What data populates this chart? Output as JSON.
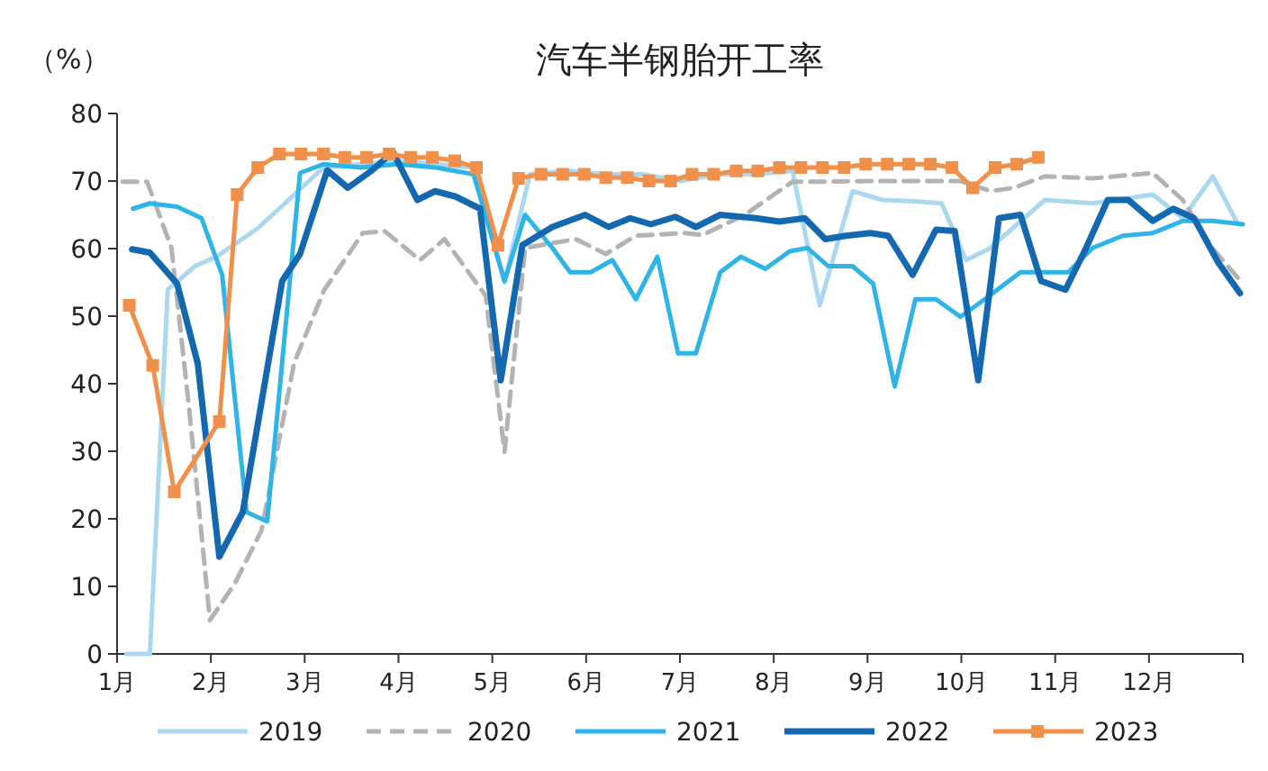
{
  "chart_data": {
    "type": "line",
    "title": "汽车半钢胎开工率",
    "ylabel": "（%）",
    "xlim": [
      1,
      13
    ],
    "xticks": [
      {
        "value": 1,
        "label": "1月"
      },
      {
        "value": 2,
        "label": "2月"
      },
      {
        "value": 3,
        "label": "3月"
      },
      {
        "value": 4,
        "label": "4月"
      },
      {
        "value": 5,
        "label": "5月"
      },
      {
        "value": 6,
        "label": "6月"
      },
      {
        "value": 7,
        "label": "7月"
      },
      {
        "value": 8,
        "label": "8月"
      },
      {
        "value": 9,
        "label": "9月"
      },
      {
        "value": 10,
        "label": "10月"
      },
      {
        "value": 11,
        "label": "11月"
      },
      {
        "value": 12,
        "label": "12月"
      },
      {
        "value": 13,
        "label": null
      }
    ],
    "ylim": [
      0,
      80
    ],
    "yticks": [
      0,
      10,
      20,
      30,
      40,
      50,
      60,
      70,
      80
    ],
    "grid": false,
    "legend": "bottom",
    "series": [
      {
        "name": "2019",
        "color": "#a9d8f0",
        "line_style": "solid",
        "marker": "none",
        "x": [
          1.1,
          1.35,
          1.54,
          1.83,
          2.06,
          2.5,
          2.89,
          3.2,
          3.6,
          4.0,
          4.4,
          4.8,
          5.13,
          5.4,
          5.8,
          6.2,
          6.6,
          7.0,
          7.4,
          7.8,
          8.2,
          8.49,
          8.84,
          9.16,
          9.5,
          9.79,
          10.05,
          10.3,
          10.89,
          11.4,
          12.04,
          12.36,
          12.68,
          12.93
        ],
        "values": [
          0,
          0,
          53.9,
          57.4,
          58.8,
          63,
          68,
          72,
          72.5,
          73,
          72.5,
          72,
          55,
          71,
          71.5,
          71,
          71,
          70,
          71,
          71,
          71.5,
          51.6,
          68.5,
          67.2,
          67,
          66.7,
          58.3,
          60,
          67.2,
          66.7,
          68,
          64.5,
          70.7,
          64.1
        ]
      },
      {
        "name": "2020",
        "color": "#b3b3b3",
        "line_style": "dashed",
        "marker": "none",
        "x": [
          1.06,
          1.32,
          1.58,
          1.77,
          1.99,
          2.25,
          2.54,
          2.89,
          3.21,
          3.62,
          3.85,
          4.23,
          4.49,
          4.93,
          5.13,
          5.35,
          5.89,
          6.21,
          6.53,
          7.05,
          7.24,
          7.69,
          8.2,
          8.52,
          9.0,
          9.5,
          9.99,
          10.31,
          10.56,
          10.89,
          11.4,
          12.04,
          12.36,
          12.68,
          13
        ],
        "values": [
          69.9,
          69.9,
          60.1,
          36.1,
          5,
          10.3,
          18.3,
          43.2,
          53.9,
          62.3,
          62.6,
          58.3,
          61.4,
          53,
          29.9,
          60.1,
          61.4,
          59.2,
          61.9,
          62.3,
          62,
          65,
          69.9,
          69.9,
          70,
          70,
          70,
          68.5,
          69,
          70.7,
          70.4,
          71.2,
          67.2,
          60,
          54.8
        ]
      },
      {
        "name": "2021",
        "color": "#2fb4e8",
        "line_style": "solid",
        "marker": "none",
        "x": [
          1.17,
          1.35,
          1.64,
          1.9,
          2.12,
          2.38,
          2.6,
          2.95,
          3.2,
          3.6,
          4.0,
          4.4,
          4.8,
          5.13,
          5.35,
          5.64,
          5.83,
          6.05,
          6.28,
          6.53,
          6.76,
          6.98,
          7.17,
          7.43,
          7.65,
          7.91,
          8.17,
          8.36,
          8.58,
          8.84,
          9.06,
          9.29,
          9.51,
          9.73,
          9.99,
          10.25,
          10.63,
          11.14,
          11.4,
          11.72,
          12.04,
          12.36,
          12.68,
          13
        ],
        "values": [
          65.9,
          66.7,
          66.2,
          64.5,
          56.1,
          21,
          19.6,
          71.2,
          72.5,
          72,
          72.5,
          72,
          71,
          55.2,
          65,
          60.1,
          56.5,
          56.5,
          58.3,
          52.5,
          58.8,
          44.5,
          44.5,
          56.5,
          58.8,
          57,
          59.6,
          60.1,
          57.4,
          57.4,
          54.8,
          39.6,
          52.5,
          52.5,
          49.9,
          52.5,
          56.5,
          56.5,
          60.1,
          61.9,
          62.3,
          64.1,
          64.1,
          63.6
        ]
      },
      {
        "name": "2022",
        "color": "#1468b0",
        "line_style": "solid",
        "marker": "none",
        "x": [
          1.16,
          1.35,
          1.64,
          1.86,
          2.09,
          2.34,
          2.76,
          2.95,
          3.24,
          3.46,
          3.72,
          3.94,
          4.2,
          4.39,
          4.61,
          4.87,
          5.09,
          5.32,
          5.64,
          5.99,
          6.24,
          6.47,
          6.69,
          6.95,
          7.17,
          7.43,
          7.81,
          8.06,
          8.33,
          8.55,
          8.77,
          9.03,
          9.22,
          9.48,
          9.73,
          9.93,
          10.18,
          10.4,
          10.63,
          10.85,
          11.11,
          11.33,
          11.56,
          11.78,
          12.04,
          12.26,
          12.48,
          12.74,
          12.97
        ],
        "values": [
          59.9,
          59.4,
          54.8,
          43,
          14.4,
          21,
          55.2,
          59.2,
          71.6,
          69,
          71.6,
          74.3,
          67.2,
          68.5,
          67.7,
          65.9,
          40.5,
          60.5,
          63.2,
          65,
          63.2,
          64.5,
          63.6,
          64.7,
          63.2,
          65,
          64.5,
          64,
          64.5,
          61.4,
          61.9,
          62.3,
          61.9,
          56.1,
          62.8,
          62.6,
          40.5,
          64.5,
          65,
          55.2,
          53.9,
          60.1,
          67.2,
          67.2,
          64.1,
          65.9,
          64.5,
          57.9,
          53.4
        ]
      },
      {
        "name": "2023",
        "color": "#f0904a",
        "line_style": "solid",
        "marker": "square",
        "x": [
          1.13,
          1.38,
          1.61,
          2.09,
          2.28,
          2.5,
          2.73,
          2.96,
          3.2,
          3.43,
          3.66,
          3.9,
          4.13,
          4.36,
          4.6,
          4.83,
          5.06,
          5.28,
          5.52,
          5.75,
          5.98,
          6.21,
          6.44,
          6.67,
          6.9,
          7.13,
          7.36,
          7.6,
          7.83,
          8.06,
          8.29,
          8.52,
          8.75,
          8.98,
          9.21,
          9.44,
          9.67,
          9.9,
          10.12,
          10.36,
          10.59,
          10.82
        ],
        "values": [
          51.6,
          42.7,
          24,
          34.4,
          68,
          72,
          74,
          74,
          74,
          73.5,
          73.5,
          74,
          73.5,
          73.5,
          73,
          72,
          60.5,
          70.4,
          71,
          71,
          71,
          70.5,
          70.5,
          70,
          70,
          71,
          71,
          71.5,
          71.5,
          72,
          72,
          72,
          72,
          72.5,
          72.5,
          72.5,
          72.5,
          72,
          69,
          72,
          72.5,
          73.5
        ]
      }
    ]
  }
}
